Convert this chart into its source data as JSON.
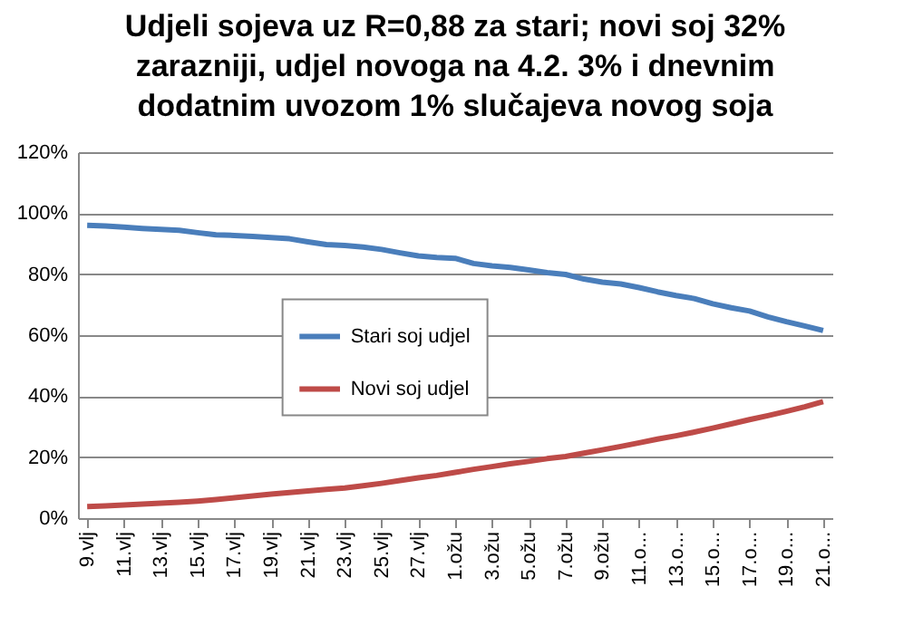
{
  "chart_data": {
    "type": "line",
    "title": "Udjeli sojeva uz R=0,88 za stari; novi soj 32% zarazniji,  udjel novoga na 4.2. 3% i dnevnim dodatnim  uvozom 1% slučajeva novog soja",
    "categories": [
      "9.vlj",
      null,
      "11.vlj",
      null,
      "13.vlj",
      null,
      "15.vlj",
      null,
      "17.vlj",
      null,
      "19.vlj",
      null,
      "21.vlj",
      null,
      "23.vlj",
      null,
      "25.vlj",
      null,
      "27.vlj",
      null,
      "1.ožu",
      null,
      "3.ožu",
      null,
      "5.ožu",
      null,
      "7.ožu",
      null,
      "9.ožu",
      null,
      "11.o...",
      null,
      "13.o...",
      null,
      "15.o...",
      null,
      "17.o...",
      null,
      "19.o...",
      null,
      "21.o..."
    ],
    "series": [
      {
        "name": "Stari soj udjel",
        "color": "#4a7ebb",
        "values": [
          96.0,
          95.8,
          95.4,
          95.0,
          94.7,
          94.4,
          93.6,
          92.9,
          92.7,
          92.4,
          92.0,
          91.6,
          90.6,
          89.7,
          89.4,
          88.9,
          88.1,
          87.0,
          86.0,
          85.5,
          85.2,
          83.5,
          82.7,
          82.2,
          81.4,
          80.5,
          79.9,
          78.4,
          77.4,
          76.8,
          75.6,
          74.2,
          73.0,
          72.0,
          70.3,
          69.0,
          67.9,
          66.0,
          64.4,
          63.0,
          61.5
        ]
      },
      {
        "name": "Novi soj udjel",
        "color": "#be4b48",
        "values": [
          3.8,
          4.0,
          4.3,
          4.6,
          4.9,
          5.2,
          5.6,
          6.1,
          6.7,
          7.3,
          7.9,
          8.4,
          8.9,
          9.4,
          9.9,
          10.6,
          11.4,
          12.3,
          13.2,
          14.0,
          15.0,
          16.0,
          16.9,
          17.8,
          18.6,
          19.5,
          20.2,
          21.3,
          22.4,
          23.5,
          24.7,
          25.9,
          27.0,
          28.2,
          29.5,
          30.9,
          32.3,
          33.6,
          35.0,
          36.5,
          38.2
        ]
      }
    ],
    "ylim": [
      0,
      120
    ],
    "yticks": [
      {
        "value": 0,
        "label": "0%"
      },
      {
        "value": 20,
        "label": "20%"
      },
      {
        "value": 40,
        "label": "40%"
      },
      {
        "value": 60,
        "label": "60%"
      },
      {
        "value": 80,
        "label": "80%"
      },
      {
        "value": 100,
        "label": "100%"
      },
      {
        "value": 120,
        "label": "120%"
      }
    ],
    "grid": "y",
    "legend": "center",
    "line_style": "solid",
    "marker": "none"
  }
}
